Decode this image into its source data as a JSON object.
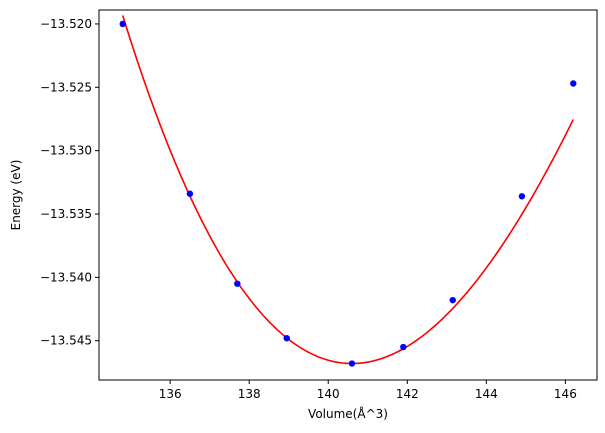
{
  "chart_data": {
    "type": "scatter",
    "title": "",
    "xlabel": "Volume(Å^3)",
    "ylabel": "Energy (eV)",
    "xlim": [
      134.2,
      146.8
    ],
    "ylim": [
      -13.5481,
      -13.5189
    ],
    "xticks": [
      136,
      138,
      140,
      142,
      144,
      146
    ],
    "xtick_labels": [
      "136",
      "138",
      "140",
      "142",
      "144",
      "146"
    ],
    "yticks": [
      -13.52,
      -13.525,
      -13.53,
      -13.535,
      -13.54,
      -13.545
    ],
    "ytick_labels": [
      "−13.520",
      "−13.525",
      "−13.530",
      "−13.535",
      "−13.540",
      "−13.545"
    ],
    "grid": false,
    "series": [
      {
        "kind": "points",
        "color": "#0000ff",
        "marker": "circle",
        "x": [
          134.8,
          136.5,
          137.7,
          138.95,
          140.6,
          141.9,
          143.15,
          144.9,
          146.2
        ],
        "y": [
          -13.52,
          -13.5334,
          -13.5405,
          -13.5448,
          -13.5468,
          -13.5455,
          -13.5418,
          -13.5336,
          -13.5247
        ]
      },
      {
        "kind": "fit-curve",
        "color": "#ff0000",
        "x_min": 134.8,
        "x_max": 146.2,
        "V0": 140.6,
        "E0": -13.5468,
        "coefficients": {
          "a2": 0.0007136,
          "a3": -1.776e-05
        }
      }
    ]
  }
}
